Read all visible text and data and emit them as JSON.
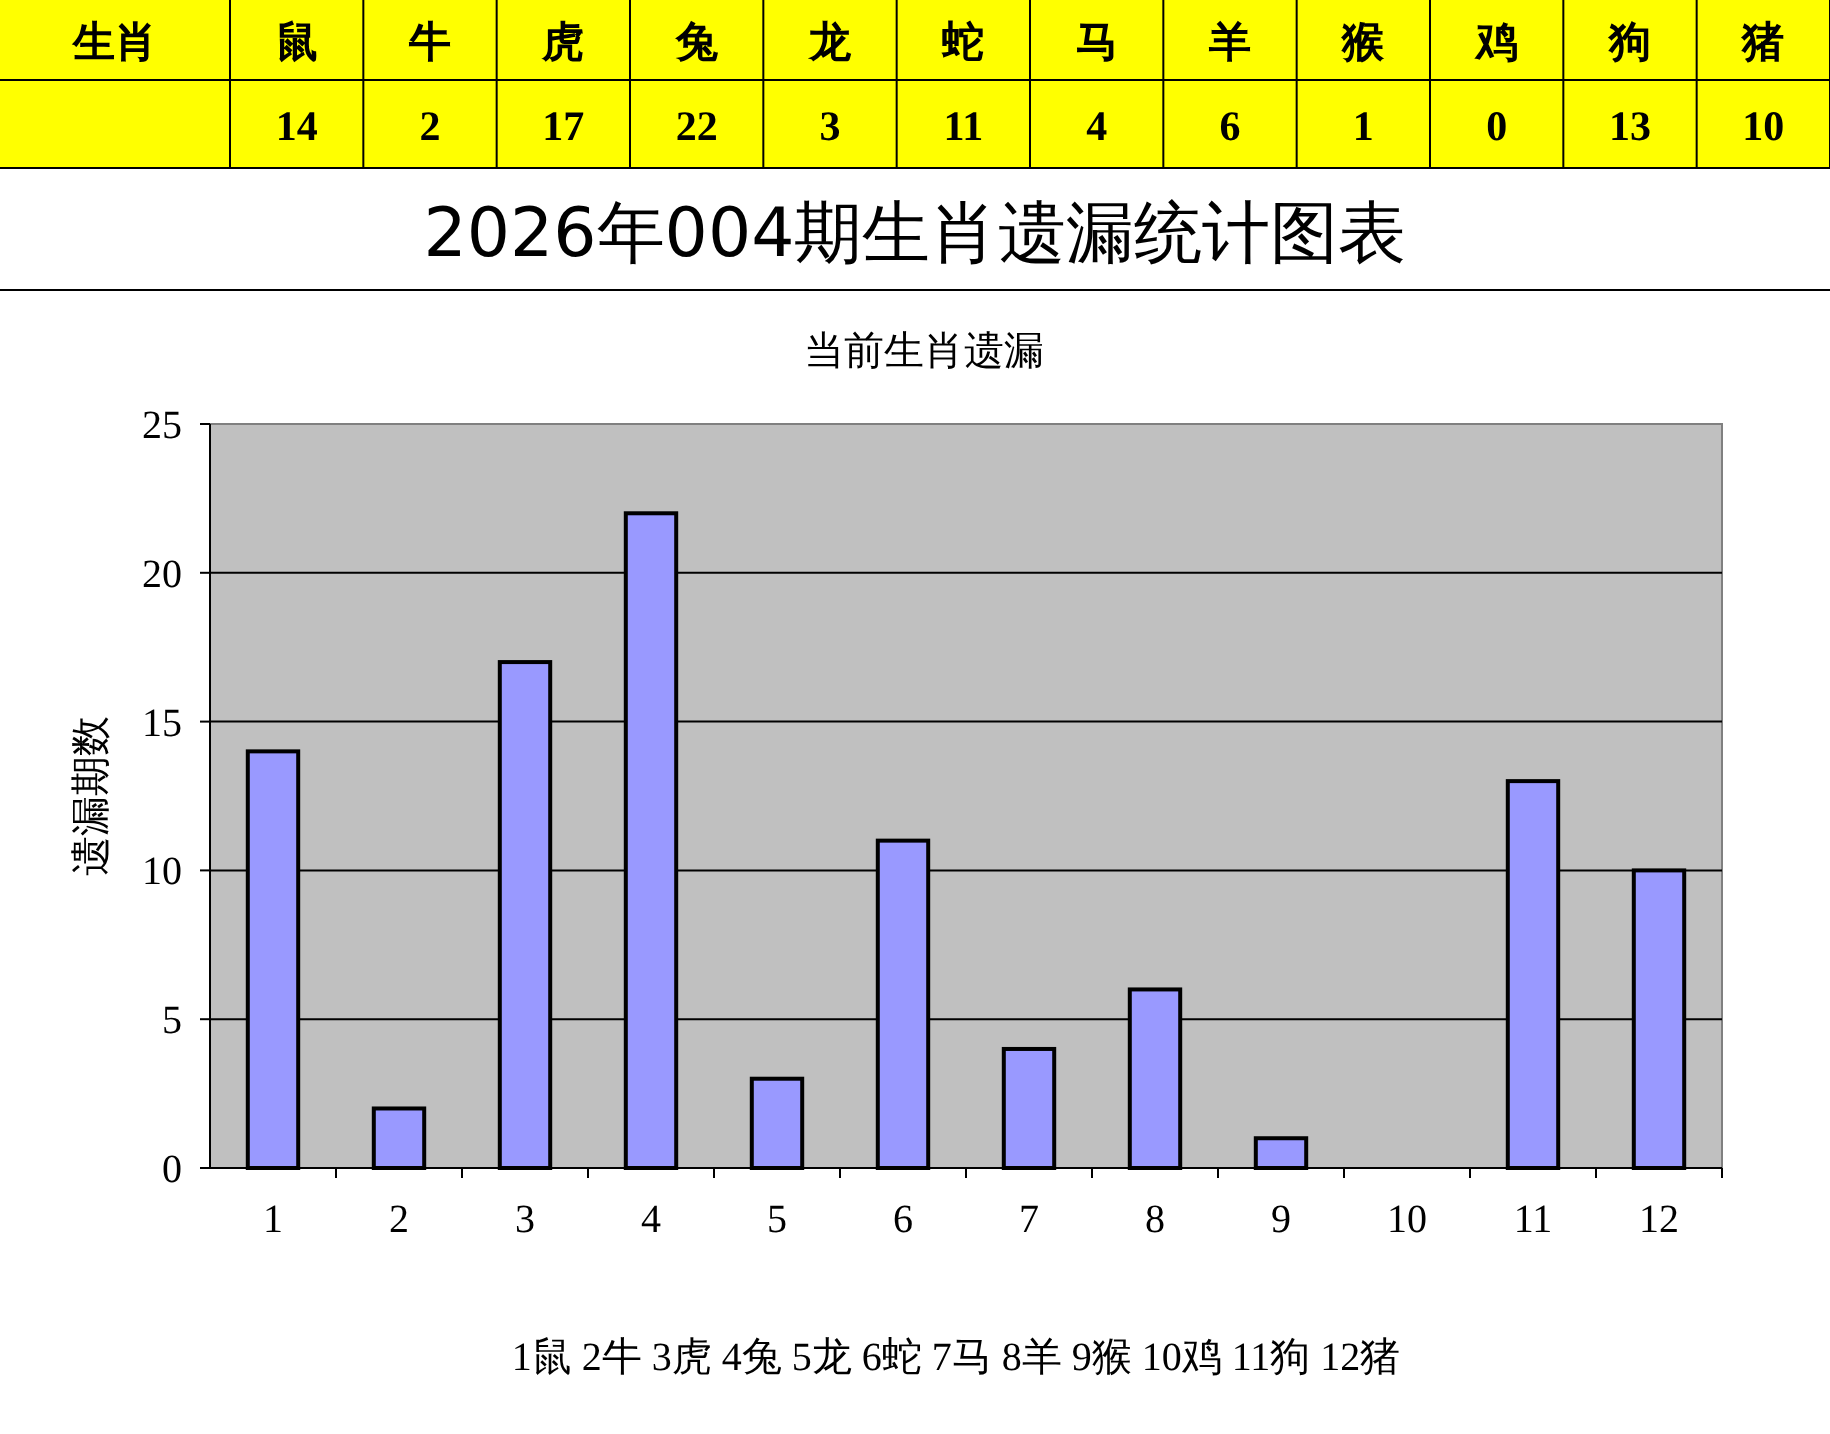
{
  "chart_data": [
    {
      "type": "other",
      "annotations": [
        "生肖"
      ],
      "categories": [
        "鼠",
        "牛",
        "虎",
        "兔",
        "龙",
        "蛇",
        "马",
        "羊",
        "猴",
        "鸡",
        "狗",
        "猪"
      ],
      "values": [
        14,
        2,
        17,
        22,
        3,
        11,
        4,
        6,
        1,
        0,
        13,
        10
      ],
      "data_labels": true
    },
    {
      "type": "bar",
      "title": "2026年004期生肖遗漏统计图表",
      "subtitle": "当前生肖遗漏",
      "ylabel": "遗漏期数",
      "categories": [
        "1",
        "2",
        "3",
        "4",
        "5",
        "6",
        "7",
        "8",
        "9",
        "10",
        "11",
        "12"
      ],
      "values": [
        14,
        2,
        17,
        22,
        3,
        11,
        4,
        6,
        1,
        0,
        13,
        10
      ],
      "color": "#9999ff",
      "ylim": [
        0,
        25
      ],
      "yticks": [
        0,
        5,
        10,
        15,
        20,
        25
      ],
      "grid": "y",
      "annotations": [
        "1鼠  2牛  3虎  4兔  5龙  6蛇  7马  8羊  9猴  10鸡  11狗  12猪"
      ]
    }
  ]
}
